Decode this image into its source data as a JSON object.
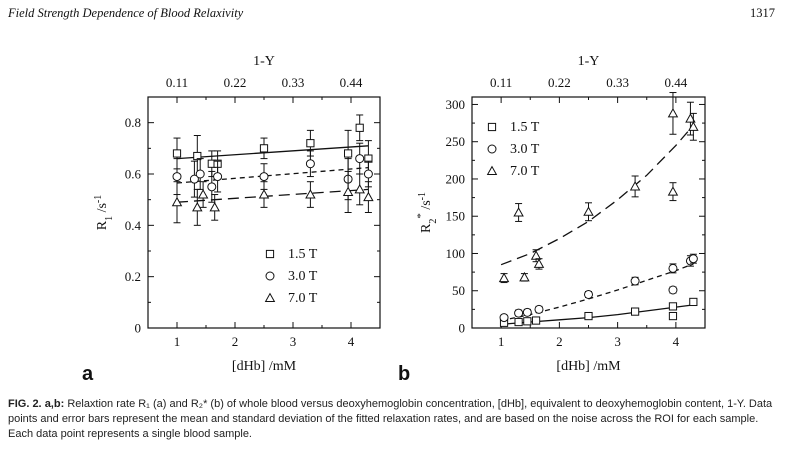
{
  "header": {
    "running_title": "Field Strength Dependence of Blood Relaxivity",
    "page_number": "1317"
  },
  "caption": {
    "label": "FIG. 2.",
    "panels": "a,b:",
    "text": "Relaxtion rate R₁ (a) and R₂* (b) of whole blood versus deoxyhemoglobin concentration, [dHb], equivalent to deoxyhemoglobin content, 1-Y. Data points and error bars represent the mean and standard deviation of the fitted relaxation rates, and are based on the noise across the ROI for each sample. Each data point represents a single blood sample."
  },
  "chart_data": [
    {
      "type": "scatter",
      "panel_label": "a",
      "xlabel": "[dHb] /mM",
      "ylabel_main": "R",
      "ylabel_sub": "1",
      "ylabel_unit": " /s",
      "ylabel_sup": "-1",
      "top_axis_label": "1-Y",
      "xlim": [
        0.5,
        4.5
      ],
      "ylim": [
        0,
        0.9
      ],
      "x_ticks": [
        1,
        2,
        3,
        4
      ],
      "y_ticks": [
        0,
        0.2,
        0.4,
        0.6,
        0.8
      ],
      "y_tick_labels": [
        "0",
        "0.2",
        "0.4",
        "0.6",
        "0.8"
      ],
      "top_ticks": [
        1,
        2,
        3,
        4
      ],
      "top_tick_labels": [
        "0.11",
        "0.22",
        "0.33",
        "0.44"
      ],
      "legend": {
        "position": "bottom-right",
        "entries": [
          "1.5 T",
          "3.0 T",
          "7.0 T"
        ]
      },
      "series": [
        {
          "name": "1.5 T",
          "marker": "square",
          "fit_dash": "solid",
          "points": [
            {
              "x": 1.0,
              "y": 0.68,
              "err": 0.06
            },
            {
              "x": 1.35,
              "y": 0.67,
              "err": 0.08
            },
            {
              "x": 1.6,
              "y": 0.64,
              "err": 0.05
            },
            {
              "x": 1.7,
              "y": 0.64,
              "err": 0.05
            },
            {
              "x": 2.5,
              "y": 0.7,
              "err": 0.04
            },
            {
              "x": 3.3,
              "y": 0.72,
              "err": 0.05
            },
            {
              "x": 3.95,
              "y": 0.68,
              "err": 0.09
            },
            {
              "x": 4.15,
              "y": 0.78,
              "err": 0.05
            },
            {
              "x": 4.3,
              "y": 0.66,
              "err": 0.07
            }
          ],
          "fit": [
            [
              1.0,
              0.66
            ],
            [
              4.3,
              0.71
            ]
          ]
        },
        {
          "name": "3.0 T",
          "marker": "circle",
          "fit_dash": "short",
          "points": [
            {
              "x": 1.0,
              "y": 0.59,
              "err": 0.07
            },
            {
              "x": 1.3,
              "y": 0.58,
              "err": 0.07
            },
            {
              "x": 1.4,
              "y": 0.6,
              "err": 0.06
            },
            {
              "x": 1.6,
              "y": 0.55,
              "err": 0.06
            },
            {
              "x": 1.7,
              "y": 0.59,
              "err": 0.06
            },
            {
              "x": 2.5,
              "y": 0.59,
              "err": 0.05
            },
            {
              "x": 3.3,
              "y": 0.64,
              "err": 0.05
            },
            {
              "x": 3.95,
              "y": 0.58,
              "err": 0.08
            },
            {
              "x": 4.15,
              "y": 0.66,
              "err": 0.06
            },
            {
              "x": 4.3,
              "y": 0.6,
              "err": 0.05
            }
          ],
          "fit": [
            [
              1.0,
              0.565
            ],
            [
              4.3,
              0.625
            ]
          ]
        },
        {
          "name": "7.0 T",
          "marker": "triangle",
          "fit_dash": "long",
          "points": [
            {
              "x": 1.0,
              "y": 0.49,
              "err": 0.08
            },
            {
              "x": 1.35,
              "y": 0.47,
              "err": 0.07
            },
            {
              "x": 1.45,
              "y": 0.52,
              "err": 0.05
            },
            {
              "x": 1.65,
              "y": 0.47,
              "err": 0.05
            },
            {
              "x": 2.5,
              "y": 0.52,
              "err": 0.05
            },
            {
              "x": 3.3,
              "y": 0.52,
              "err": 0.05
            },
            {
              "x": 3.95,
              "y": 0.53,
              "err": 0.08
            },
            {
              "x": 4.15,
              "y": 0.54,
              "err": 0.06
            },
            {
              "x": 4.3,
              "y": 0.51,
              "err": 0.06
            }
          ],
          "fit": [
            [
              1.0,
              0.49
            ],
            [
              4.3,
              0.54
            ]
          ]
        }
      ]
    },
    {
      "type": "scatter",
      "panel_label": "b",
      "xlabel": "[dHb] /mM",
      "ylabel_main": "R",
      "ylabel_sub": "2",
      "ylabel_star": "*",
      "ylabel_unit": " /s",
      "ylabel_sup": "-1",
      "top_axis_label": "1-Y",
      "xlim": [
        0.5,
        4.5
      ],
      "ylim": [
        0,
        310
      ],
      "x_ticks": [
        1,
        2,
        3,
        4
      ],
      "y_ticks": [
        0,
        50,
        100,
        150,
        200,
        250,
        300
      ],
      "y_tick_labels": [
        "0",
        "50",
        "100",
        "150",
        "200",
        "250",
        "300"
      ],
      "top_ticks": [
        1,
        2,
        3,
        4
      ],
      "top_tick_labels": [
        "0.11",
        "0.22",
        "0.33",
        "0.44"
      ],
      "legend": {
        "position": "top-left",
        "entries": [
          "1.5 T",
          "3.0 T",
          "7.0 T"
        ]
      },
      "series": [
        {
          "name": "1.5 T",
          "marker": "square",
          "fit_dash": "solid",
          "points": [
            {
              "x": 1.05,
              "y": 7,
              "err": 2
            },
            {
              "x": 1.3,
              "y": 8,
              "err": 2
            },
            {
              "x": 1.45,
              "y": 9,
              "err": 2
            },
            {
              "x": 1.6,
              "y": 10,
              "err": 2
            },
            {
              "x": 2.5,
              "y": 16,
              "err": 3
            },
            {
              "x": 3.3,
              "y": 22,
              "err": 3
            },
            {
              "x": 3.95,
              "y": 16,
              "err": 3
            },
            {
              "x": 3.95,
              "y": 29,
              "err": 3
            },
            {
              "x": 4.3,
              "y": 35,
              "err": 4
            }
          ],
          "fit": [
            [
              1.0,
              5
            ],
            [
              1.5,
              8
            ],
            [
              2.0,
              11
            ],
            [
              2.5,
              14
            ],
            [
              3.0,
              18
            ],
            [
              3.5,
              23
            ],
            [
              4.0,
              28
            ],
            [
              4.3,
              31
            ]
          ]
        },
        {
          "name": "3.0 T",
          "marker": "circle",
          "fit_dash": "short",
          "points": [
            {
              "x": 1.05,
              "y": 14,
              "err": 3
            },
            {
              "x": 1.3,
              "y": 20,
              "err": 4
            },
            {
              "x": 1.45,
              "y": 21,
              "err": 4
            },
            {
              "x": 1.65,
              "y": 25,
              "err": 4
            },
            {
              "x": 2.5,
              "y": 45,
              "err": 4
            },
            {
              "x": 3.3,
              "y": 63,
              "err": 5
            },
            {
              "x": 3.95,
              "y": 80,
              "err": 6
            },
            {
              "x": 3.95,
              "y": 51,
              "err": 4
            },
            {
              "x": 4.25,
              "y": 90,
              "err": 7
            },
            {
              "x": 4.3,
              "y": 93,
              "err": 6
            }
          ],
          "fit": [
            [
              1.0,
              10
            ],
            [
              1.5,
              18
            ],
            [
              2.0,
              28
            ],
            [
              2.5,
              39
            ],
            [
              3.0,
              51
            ],
            [
              3.5,
              64
            ],
            [
              4.0,
              77
            ],
            [
              4.3,
              86
            ]
          ]
        },
        {
          "name": "7.0 T",
          "marker": "triangle",
          "fit_dash": "long",
          "points": [
            {
              "x": 1.05,
              "y": 67,
              "err": 6
            },
            {
              "x": 1.3,
              "y": 155,
              "err": 12
            },
            {
              "x": 1.4,
              "y": 68,
              "err": 5
            },
            {
              "x": 1.6,
              "y": 97,
              "err": 8
            },
            {
              "x": 1.65,
              "y": 86,
              "err": 7
            },
            {
              "x": 2.5,
              "y": 156,
              "err": 12
            },
            {
              "x": 3.3,
              "y": 190,
              "err": 14
            },
            {
              "x": 3.95,
              "y": 288,
              "err": 28
            },
            {
              "x": 3.95,
              "y": 183,
              "err": 12
            },
            {
              "x": 4.25,
              "y": 281,
              "err": 22
            },
            {
              "x": 4.3,
              "y": 270,
              "err": 18
            }
          ],
          "fit": [
            [
              1.0,
              85
            ],
            [
              1.5,
              100
            ],
            [
              2.0,
              120
            ],
            [
              2.5,
              143
            ],
            [
              3.0,
              172
            ],
            [
              3.5,
              205
            ],
            [
              4.0,
              245
            ],
            [
              4.3,
              272
            ]
          ]
        }
      ]
    }
  ]
}
